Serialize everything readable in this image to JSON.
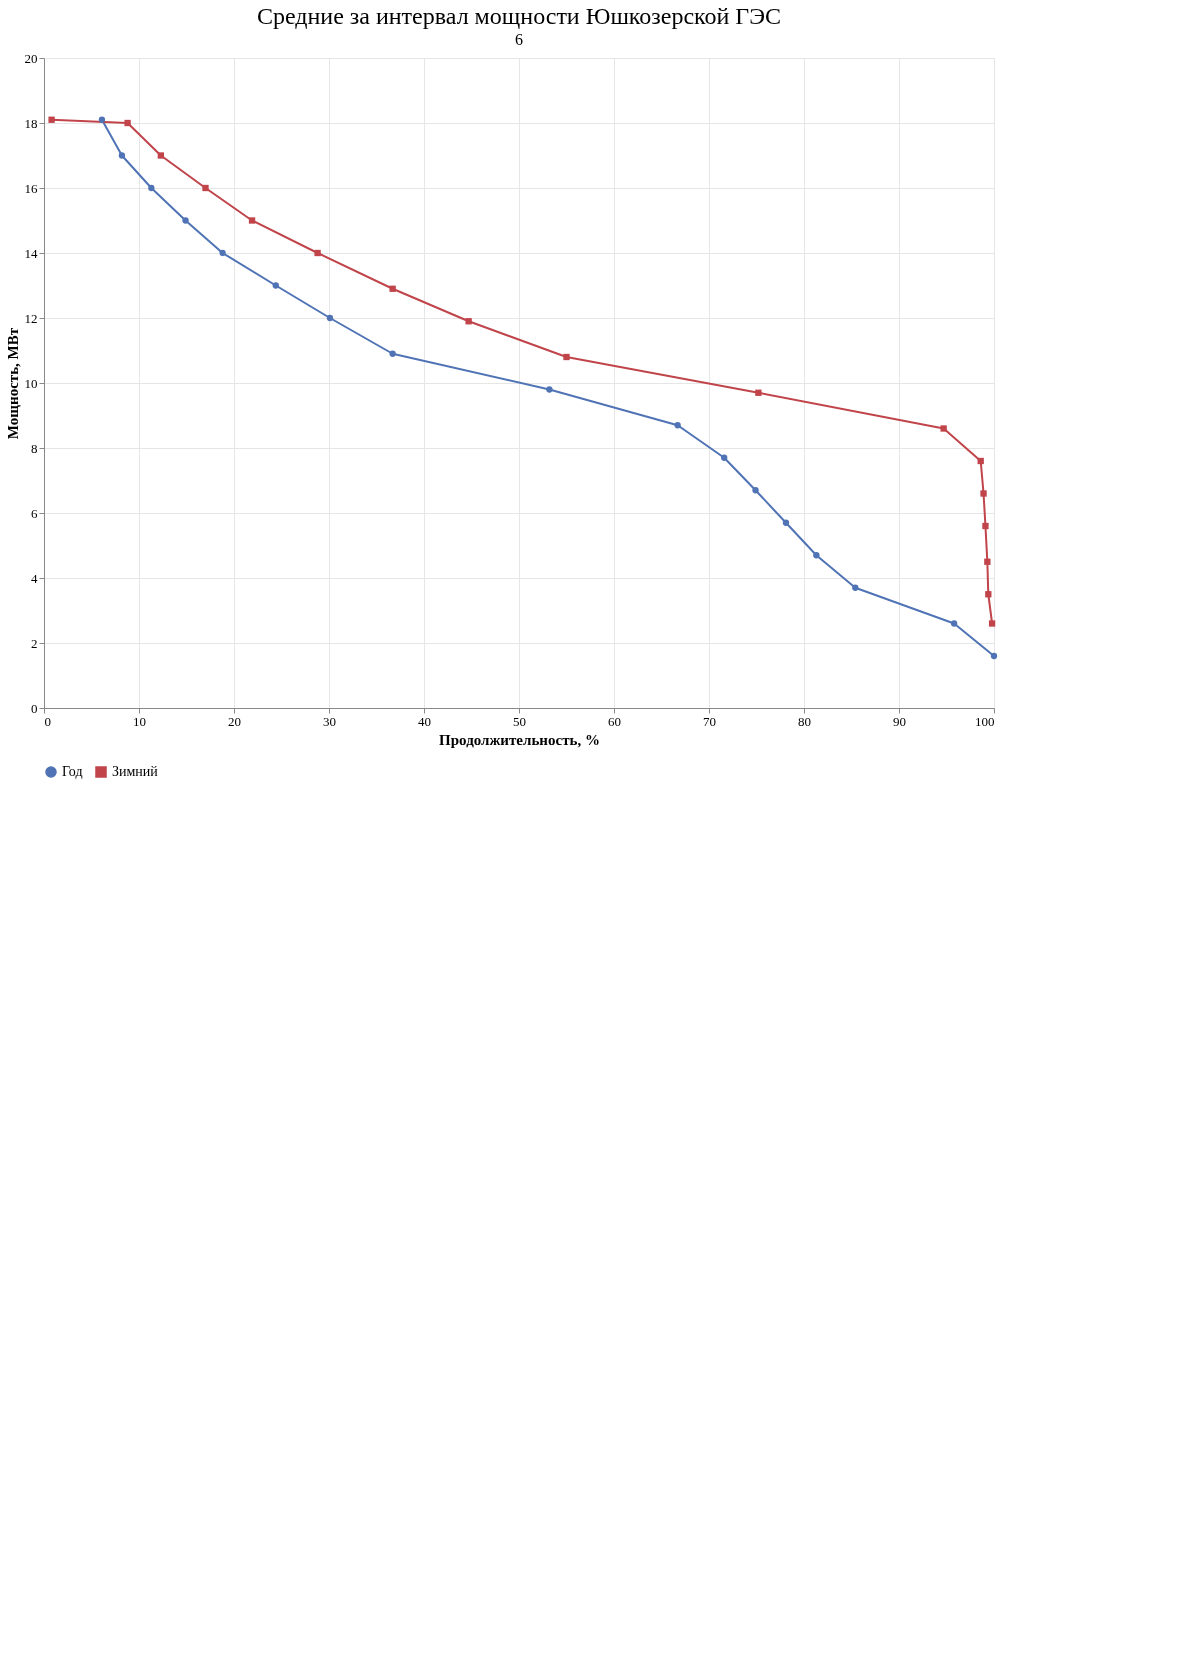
{
  "chart_data": {
    "type": "line",
    "title": "Средние за интервал мощности Юшкозерской ГЭС",
    "xlabel": "Продолжительность, %",
    "ylabel": "Мощность, МВт",
    "annotations": [
      "6"
    ],
    "xlim": [
      0,
      100
    ],
    "xticks": [
      0,
      10,
      20,
      30,
      40,
      50,
      60,
      70,
      80,
      90,
      100
    ],
    "ylim": [
      0,
      20
    ],
    "yticks": [
      0,
      2,
      4,
      6,
      8,
      10,
      12,
      14,
      16,
      18,
      20
    ],
    "grid": true,
    "legend": "bottom",
    "series": [
      {
        "name": "Год",
        "color": "#4f73b5",
        "marker": "circle",
        "x": [
          6.1,
          8.2,
          11.3,
          14.9,
          18.8,
          24.4,
          30.1,
          36.7,
          53.2,
          66.7,
          71.6,
          74.9,
          78.1,
          81.3,
          85.4,
          95.8,
          100
        ],
        "values": [
          18.1,
          17.0,
          16.0,
          15.0,
          14.0,
          13.0,
          12.0,
          10.9,
          9.8,
          8.7,
          7.7,
          6.7,
          5.7,
          4.7,
          3.7,
          2.6,
          1.6
        ]
      },
      {
        "name": "Зимний",
        "color": "#c0444a",
        "marker": "square",
        "x": [
          0.8,
          8.8,
          12.3,
          17.0,
          21.9,
          28.8,
          36.7,
          44.7,
          55.0,
          75.2,
          94.7,
          98.6,
          98.9,
          99.1,
          99.3,
          99.4,
          99.8
        ],
        "values": [
          18.1,
          18.0,
          17.0,
          16.0,
          15.0,
          14.0,
          12.9,
          11.9,
          10.8,
          9.7,
          8.6,
          7.6,
          6.6,
          5.6,
          4.5,
          3.5,
          2.6
        ]
      }
    ]
  }
}
